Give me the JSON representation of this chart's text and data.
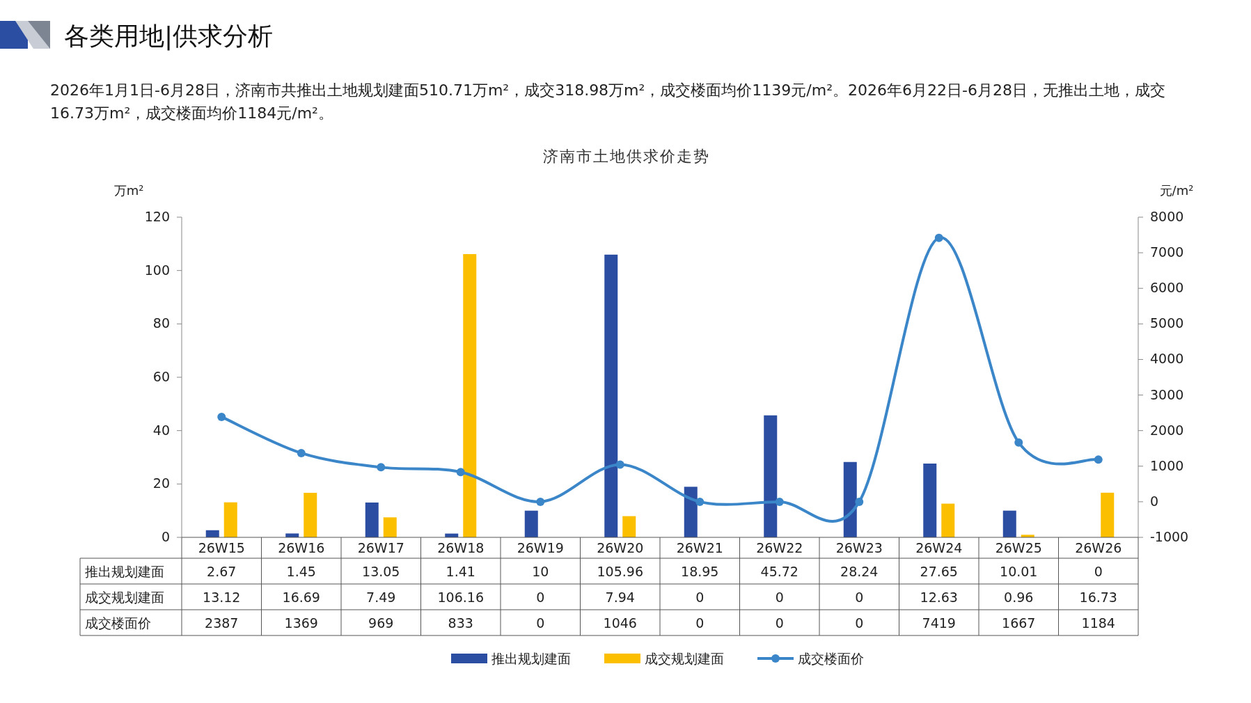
{
  "chart_data": {
    "type": "bar",
    "title": "济南市土地供求价走势",
    "subtitle": "2026年1月1日-6月28日，济南市共推出土地规划建面510.71万m²，成交318.98万m²，成交楼面均价1139元/m²。2026年6月22日-6月28日，无推出土地，成交16.73万m²，成交楼面均价1184元/m²。",
    "annotations": [
      "各类用地|供求分析"
    ],
    "ylabel": "万m²",
    "y2label": "元/m²",
    "categories": [
      "26W15",
      "26W16",
      "26W17",
      "26W18",
      "26W19",
      "26W20",
      "26W21",
      "26W22",
      "26W23",
      "26W24",
      "26W25",
      "26W26"
    ],
    "series": [
      {
        "name": "推出规划建面",
        "color": "#2b4ea2",
        "values": [
          2.67,
          1.45,
          13.05,
          1.41,
          10,
          105.96,
          18.95,
          45.72,
          28.24,
          27.65,
          10.01,
          0
        ]
      },
      {
        "name": "成交规划建面",
        "color": "#fcbf00",
        "values": [
          13.12,
          16.69,
          7.49,
          106.16,
          0,
          7.94,
          0,
          0,
          0,
          12.63,
          0.96,
          16.73
        ]
      },
      {
        "name": "成交楼面价",
        "type": "line",
        "axis": "y2",
        "color": "#3a86c8",
        "marker": "circle",
        "values": [
          2387,
          1369,
          969,
          833,
          0,
          1046,
          0,
          0,
          0,
          7419,
          1667,
          1184
        ]
      }
    ],
    "ylim": [
      0,
      120
    ],
    "yticks": [
      0,
      20,
      40,
      60,
      80,
      100,
      120
    ],
    "y2lim": [
      -1000,
      8000
    ],
    "y2ticks": [
      -1000,
      0,
      1000,
      2000,
      3000,
      4000,
      5000,
      6000,
      7000,
      8000
    ],
    "data_labels": true,
    "legend": "bottom",
    "grid": false
  }
}
